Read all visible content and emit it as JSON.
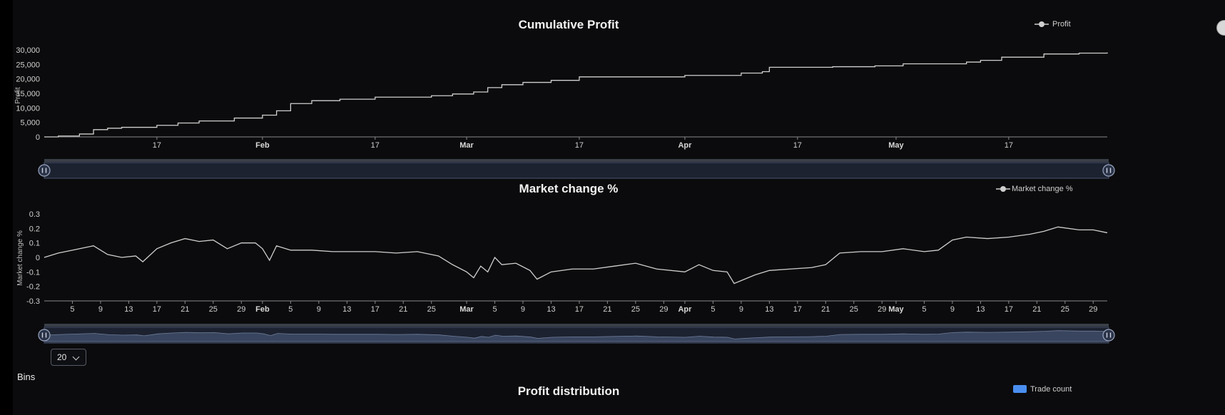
{
  "controls": {
    "bins_label": "Bins",
    "bins_value": "20"
  },
  "chart_data": [
    {
      "type": "line",
      "title": "Cumulative Profit",
      "ylabel": "Profit",
      "legend": [
        "Profit"
      ],
      "legend_position": "top-right",
      "xlim": [
        "2024-01-01",
        "2024-05-31"
      ],
      "ylim": [
        0,
        30000
      ],
      "y_ticks": [
        "0",
        "5,000",
        "10,000",
        "15,000",
        "20,000",
        "25,000",
        "30,000"
      ],
      "x_ticks": [
        {
          "date": "2024-01-17",
          "label": "17",
          "bold": false
        },
        {
          "date": "2024-02-01",
          "label": "Feb",
          "bold": true
        },
        {
          "date": "2024-02-17",
          "label": "17",
          "bold": false
        },
        {
          "date": "2024-03-01",
          "label": "Mar",
          "bold": true
        },
        {
          "date": "2024-03-17",
          "label": "17",
          "bold": false
        },
        {
          "date": "2024-04-01",
          "label": "Apr",
          "bold": true
        },
        {
          "date": "2024-04-17",
          "label": "17",
          "bold": false
        },
        {
          "date": "2024-05-01",
          "label": "May",
          "bold": true
        },
        {
          "date": "2024-05-17",
          "label": "17",
          "bold": false
        }
      ],
      "series": [
        {
          "x": [
            "2024-01-01",
            "2024-01-03",
            "2024-01-06",
            "2024-01-08",
            "2024-01-10",
            "2024-01-12",
            "2024-01-17",
            "2024-01-20",
            "2024-01-23",
            "2024-01-28",
            "2024-02-01",
            "2024-02-03",
            "2024-02-05",
            "2024-02-08",
            "2024-02-12",
            "2024-02-17",
            "2024-02-25",
            "2024-02-28",
            "2024-03-02",
            "2024-03-04",
            "2024-03-06",
            "2024-03-09",
            "2024-03-13",
            "2024-03-17",
            "2024-04-01",
            "2024-04-09",
            "2024-04-12",
            "2024-04-13",
            "2024-04-22",
            "2024-04-28",
            "2024-05-02",
            "2024-05-11",
            "2024-05-13",
            "2024-05-16",
            "2024-05-22",
            "2024-05-27",
            "2024-05-31"
          ],
          "y": [
            0,
            300,
            1000,
            2500,
            3000,
            3300,
            4000,
            4800,
            5500,
            6500,
            7500,
            9000,
            11500,
            12500,
            13000,
            13700,
            14200,
            14800,
            15500,
            17000,
            18000,
            18800,
            19500,
            20700,
            21200,
            22000,
            22500,
            24000,
            24200,
            24500,
            25200,
            25800,
            26400,
            27500,
            28600,
            28900,
            29100
          ]
        }
      ]
    },
    {
      "type": "line",
      "title": "Market change %",
      "ylabel": "Market change %",
      "legend": [
        "Market change %"
      ],
      "legend_position": "top-right",
      "xlim": [
        "2024-01-01",
        "2024-05-31"
      ],
      "ylim": [
        -0.3,
        0.3
      ],
      "y_ticks": [
        "-0.3",
        "-0.2",
        "-0.1",
        "0",
        "0.1",
        "0.2",
        "0.3"
      ],
      "x_ticks": [
        {
          "date": "2024-01-05",
          "label": "5",
          "bold": false
        },
        {
          "date": "2024-01-09",
          "label": "9",
          "bold": false
        },
        {
          "date": "2024-01-13",
          "label": "13",
          "bold": false
        },
        {
          "date": "2024-01-17",
          "label": "17",
          "bold": false
        },
        {
          "date": "2024-01-21",
          "label": "21",
          "bold": false
        },
        {
          "date": "2024-01-25",
          "label": "25",
          "bold": false
        },
        {
          "date": "2024-01-29",
          "label": "29",
          "bold": false
        },
        {
          "date": "2024-02-01",
          "label": "Feb",
          "bold": true
        },
        {
          "date": "2024-02-05",
          "label": "5",
          "bold": false
        },
        {
          "date": "2024-02-09",
          "label": "9",
          "bold": false
        },
        {
          "date": "2024-02-13",
          "label": "13",
          "bold": false
        },
        {
          "date": "2024-02-17",
          "label": "17",
          "bold": false
        },
        {
          "date": "2024-02-21",
          "label": "21",
          "bold": false
        },
        {
          "date": "2024-02-25",
          "label": "25",
          "bold": false
        },
        {
          "date": "2024-03-01",
          "label": "Mar",
          "bold": true
        },
        {
          "date": "2024-03-05",
          "label": "5",
          "bold": false
        },
        {
          "date": "2024-03-09",
          "label": "9",
          "bold": false
        },
        {
          "date": "2024-03-13",
          "label": "13",
          "bold": false
        },
        {
          "date": "2024-03-17",
          "label": "17",
          "bold": false
        },
        {
          "date": "2024-03-21",
          "label": "21",
          "bold": false
        },
        {
          "date": "2024-03-25",
          "label": "25",
          "bold": false
        },
        {
          "date": "2024-03-29",
          "label": "29",
          "bold": false
        },
        {
          "date": "2024-04-01",
          "label": "Apr",
          "bold": true
        },
        {
          "date": "2024-04-05",
          "label": "5",
          "bold": false
        },
        {
          "date": "2024-04-09",
          "label": "9",
          "bold": false
        },
        {
          "date": "2024-04-13",
          "label": "13",
          "bold": false
        },
        {
          "date": "2024-04-17",
          "label": "17",
          "bold": false
        },
        {
          "date": "2024-04-21",
          "label": "21",
          "bold": false
        },
        {
          "date": "2024-04-25",
          "label": "25",
          "bold": false
        },
        {
          "date": "2024-04-29",
          "label": "29",
          "bold": false
        },
        {
          "date": "2024-05-01",
          "label": "May",
          "bold": true
        },
        {
          "date": "2024-05-05",
          "label": "5",
          "bold": false
        },
        {
          "date": "2024-05-09",
          "label": "9",
          "bold": false
        },
        {
          "date": "2024-05-13",
          "label": "13",
          "bold": false
        },
        {
          "date": "2024-05-17",
          "label": "17",
          "bold": false
        },
        {
          "date": "2024-05-21",
          "label": "21",
          "bold": false
        },
        {
          "date": "2024-05-25",
          "label": "25",
          "bold": false
        },
        {
          "date": "2024-05-29",
          "label": "29",
          "bold": false
        }
      ],
      "series": [
        {
          "x": [
            "2024-01-01",
            "2024-01-03",
            "2024-01-05",
            "2024-01-07",
            "2024-01-08",
            "2024-01-10",
            "2024-01-12",
            "2024-01-14",
            "2024-01-15",
            "2024-01-17",
            "2024-01-19",
            "2024-01-21",
            "2024-01-23",
            "2024-01-25",
            "2024-01-27",
            "2024-01-29",
            "2024-01-31",
            "2024-02-01",
            "2024-02-02",
            "2024-02-03",
            "2024-02-05",
            "2024-02-08",
            "2024-02-11",
            "2024-02-14",
            "2024-02-17",
            "2024-02-20",
            "2024-02-23",
            "2024-02-26",
            "2024-02-28",
            "2024-03-01",
            "2024-03-02",
            "2024-03-03",
            "2024-03-04",
            "2024-03-05",
            "2024-03-06",
            "2024-03-08",
            "2024-03-10",
            "2024-03-11",
            "2024-03-13",
            "2024-03-16",
            "2024-03-19",
            "2024-03-22",
            "2024-03-25",
            "2024-03-28",
            "2024-04-01",
            "2024-04-03",
            "2024-04-05",
            "2024-04-07",
            "2024-04-08",
            "2024-04-09",
            "2024-04-11",
            "2024-04-13",
            "2024-04-16",
            "2024-04-19",
            "2024-04-21",
            "2024-04-23",
            "2024-04-26",
            "2024-04-29",
            "2024-05-02",
            "2024-05-05",
            "2024-05-07",
            "2024-05-09",
            "2024-05-11",
            "2024-05-14",
            "2024-05-17",
            "2024-05-20",
            "2024-05-22",
            "2024-05-24",
            "2024-05-27",
            "2024-05-29",
            "2024-05-31"
          ],
          "y": [
            0,
            0.03,
            0.05,
            0.07,
            0.08,
            0.02,
            0.0,
            0.01,
            -0.03,
            0.06,
            0.1,
            0.13,
            0.11,
            0.12,
            0.06,
            0.1,
            0.1,
            0.06,
            -0.02,
            0.08,
            0.05,
            0.05,
            0.04,
            0.04,
            0.04,
            0.03,
            0.04,
            0.01,
            -0.05,
            -0.1,
            -0.14,
            -0.06,
            -0.1,
            0.0,
            -0.05,
            -0.04,
            -0.09,
            -0.15,
            -0.1,
            -0.08,
            -0.08,
            -0.06,
            -0.04,
            -0.08,
            -0.1,
            -0.05,
            -0.09,
            -0.1,
            -0.18,
            -0.16,
            -0.12,
            -0.09,
            -0.08,
            -0.07,
            -0.05,
            0.03,
            0.04,
            0.04,
            0.06,
            0.04,
            0.05,
            0.12,
            0.14,
            0.13,
            0.14,
            0.16,
            0.18,
            0.21,
            0.19,
            0.19,
            0.17
          ]
        }
      ]
    },
    {
      "type": "bar",
      "title": "Profit distribution",
      "legend": [
        "Trade count"
      ],
      "legend_position": "top-right"
    }
  ]
}
